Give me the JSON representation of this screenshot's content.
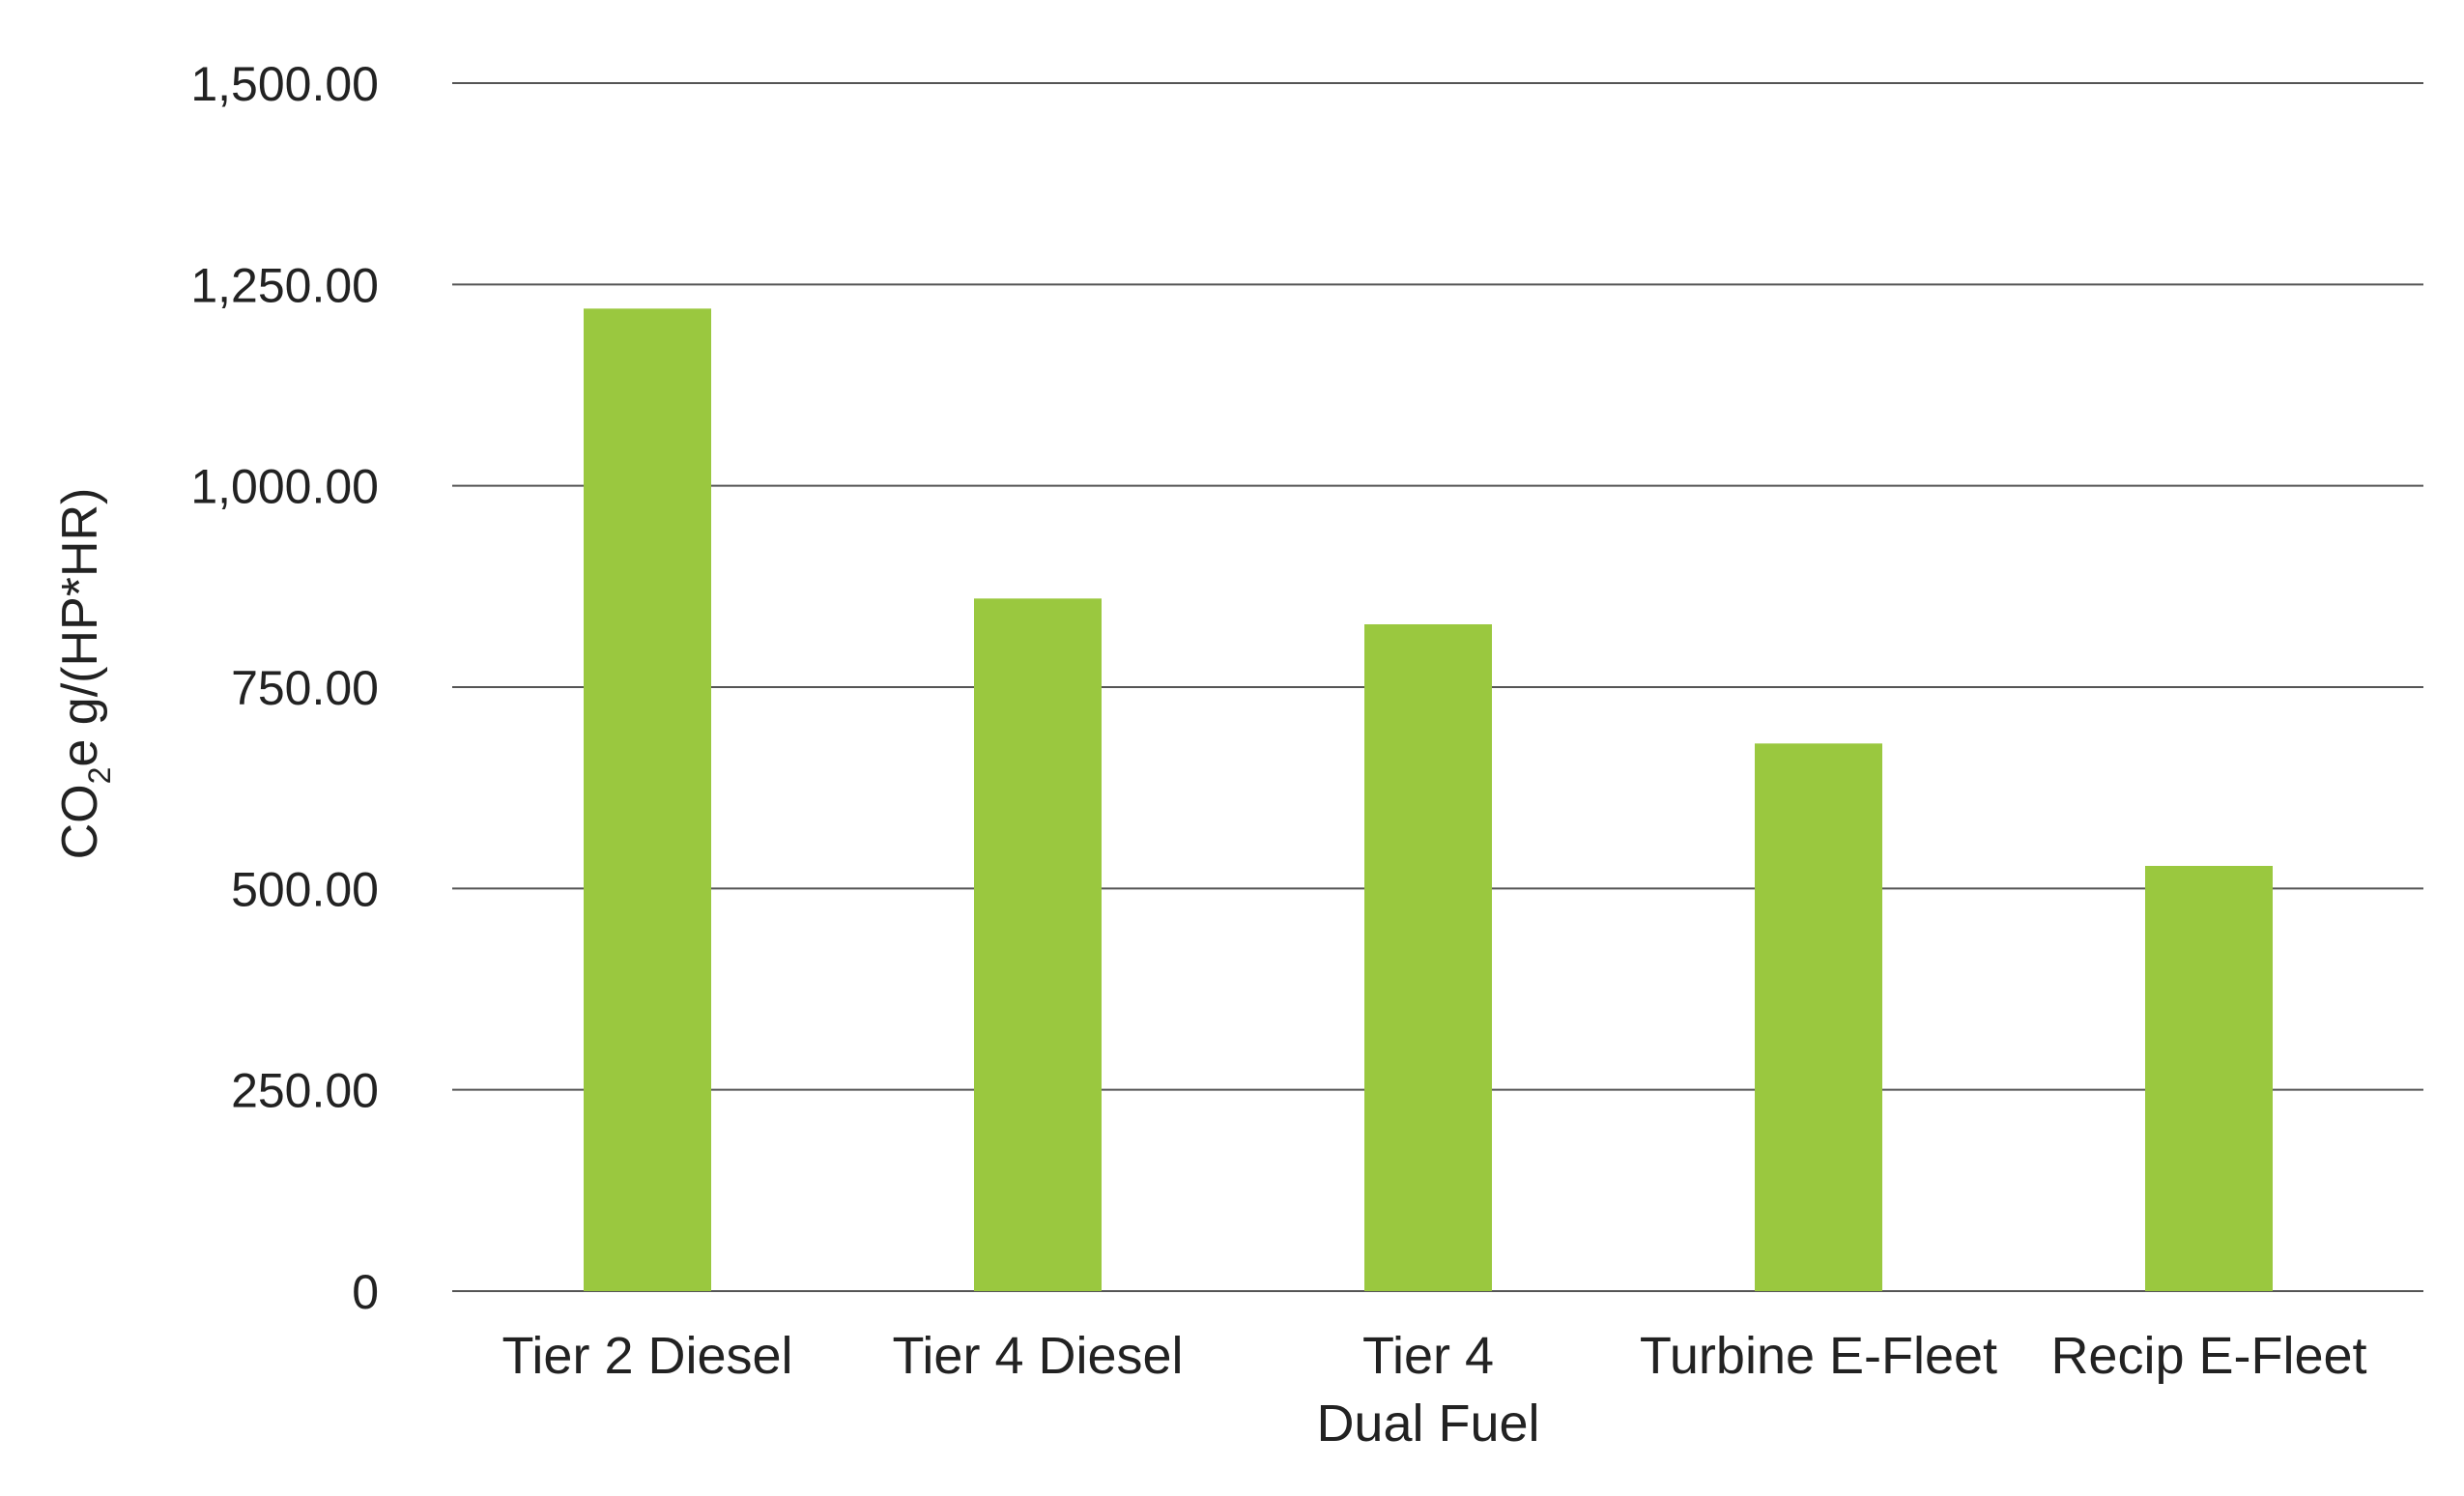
{
  "chart_data": {
    "type": "bar",
    "title": "",
    "xlabel": "",
    "ylabel": {
      "prefix": "CO",
      "subscript": "2",
      "suffix": "e g/(HP*HR)"
    },
    "categories": [
      [
        "Tier 2 Diesel"
      ],
      [
        "Tier 4 Diesel"
      ],
      [
        "Tier 4",
        "Dual Fuel"
      ],
      [
        "Turbine E-Fleet"
      ],
      [
        "Recip E-Fleet"
      ]
    ],
    "values": [
      1220,
      860,
      828,
      680,
      528
    ],
    "ylim": [
      0,
      1500
    ],
    "yticks": [
      0,
      250,
      500,
      750,
      1000,
      1250,
      1500
    ],
    "ytick_labels": [
      "0",
      "250.00",
      "500.00",
      "750.00",
      "1,000.00",
      "1,250.00",
      "1,500.00"
    ],
    "grid": true,
    "legend": "none",
    "colors": {
      "bar": "#9ac83f",
      "grid": "#555555",
      "text": "#222222"
    }
  }
}
